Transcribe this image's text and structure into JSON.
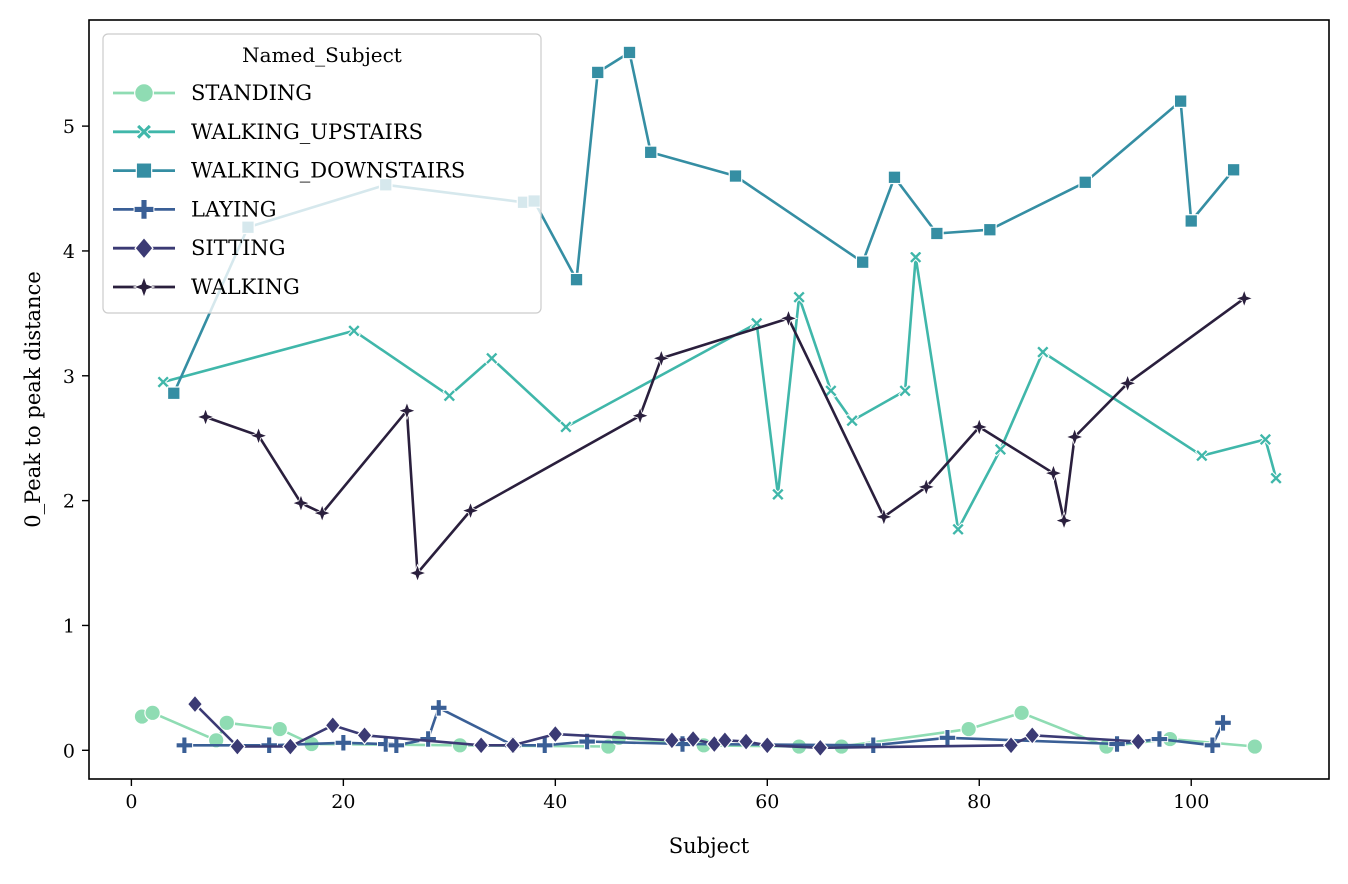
{
  "chart_data": {
    "type": "line",
    "xlabel": "Subject",
    "ylabel": "0_Peak to peak distance",
    "xlim": [
      -4,
      113
    ],
    "ylim": [
      -0.23,
      5.85
    ],
    "xticks": [
      0,
      20,
      40,
      60,
      80,
      100
    ],
    "yticks": [
      0,
      1,
      2,
      3,
      4,
      5
    ],
    "xtick_labels": [
      "0",
      "20",
      "40",
      "60",
      "80",
      "100"
    ],
    "ytick_labels": [
      "0",
      "1",
      "2",
      "3",
      "4",
      "5"
    ],
    "grid": false,
    "legend": {
      "title": "Named_Subject",
      "placement": "upper-left"
    },
    "series": [
      {
        "name": "STANDING",
        "color": "#8fdcb3",
        "marker": "circle",
        "points": [
          [
            1,
            0.27
          ],
          [
            2,
            0.3
          ],
          [
            8,
            0.08
          ],
          [
            9,
            0.22
          ],
          [
            14,
            0.17
          ],
          [
            17,
            0.05
          ],
          [
            31,
            0.04
          ],
          [
            45,
            0.03
          ],
          [
            46,
            0.1
          ],
          [
            54,
            0.04
          ],
          [
            63,
            0.03
          ],
          [
            67,
            0.03
          ],
          [
            79,
            0.17
          ],
          [
            84,
            0.3
          ],
          [
            92,
            0.03
          ],
          [
            98,
            0.09
          ],
          [
            106,
            0.03
          ]
        ]
      },
      {
        "name": "WALKING_UPSTAIRS",
        "color": "#40b7aa",
        "marker": "x",
        "points": [
          [
            3,
            2.95
          ],
          [
            21,
            3.36
          ],
          [
            30,
            2.84
          ],
          [
            34,
            3.14
          ],
          [
            41,
            2.59
          ],
          [
            59,
            3.42
          ],
          [
            61,
            2.05
          ],
          [
            63,
            3.63
          ],
          [
            66,
            2.88
          ],
          [
            68,
            2.64
          ],
          [
            73,
            2.88
          ],
          [
            74,
            3.95
          ],
          [
            78,
            1.77
          ],
          [
            82,
            2.41
          ],
          [
            86,
            3.19
          ],
          [
            101,
            2.36
          ],
          [
            107,
            2.49
          ],
          [
            108,
            2.18
          ]
        ]
      },
      {
        "name": "WALKING_DOWNSTAIRS",
        "color": "#358ea3",
        "marker": "square",
        "points": [
          [
            4,
            2.86
          ],
          [
            11,
            4.19
          ],
          [
            24,
            4.53
          ],
          [
            37,
            4.39
          ],
          [
            38,
            4.4
          ],
          [
            42,
            3.77
          ],
          [
            44,
            5.43
          ],
          [
            47,
            5.59
          ],
          [
            49,
            4.79
          ],
          [
            57,
            4.6
          ],
          [
            69,
            3.91
          ],
          [
            72,
            4.59
          ],
          [
            76,
            4.14
          ],
          [
            81,
            4.17
          ],
          [
            90,
            4.55
          ],
          [
            99,
            5.2
          ],
          [
            100,
            4.24
          ],
          [
            104,
            4.65
          ]
        ]
      },
      {
        "name": "LAYING",
        "color": "#3a5f96",
        "marker": "plus",
        "points": [
          [
            5,
            0.04
          ],
          [
            13,
            0.04
          ],
          [
            20,
            0.06
          ],
          [
            24,
            0.05
          ],
          [
            25,
            0.04
          ],
          [
            28,
            0.09
          ],
          [
            29,
            0.34
          ],
          [
            36,
            0.04
          ],
          [
            39,
            0.04
          ],
          [
            43,
            0.07
          ],
          [
            52,
            0.05
          ],
          [
            70,
            0.04
          ],
          [
            77,
            0.1
          ],
          [
            93,
            0.05
          ],
          [
            97,
            0.09
          ],
          [
            102,
            0.04
          ],
          [
            103,
            0.22
          ]
        ]
      },
      {
        "name": "SITTING",
        "color": "#3b3a74",
        "marker": "diamond",
        "points": [
          [
            6,
            0.37
          ],
          [
            10,
            0.03
          ],
          [
            15,
            0.03
          ],
          [
            19,
            0.2
          ],
          [
            22,
            0.12
          ],
          [
            33,
            0.04
          ],
          [
            36,
            0.04
          ],
          [
            40,
            0.13
          ],
          [
            51,
            0.08
          ],
          [
            53,
            0.09
          ],
          [
            55,
            0.05
          ],
          [
            56,
            0.08
          ],
          [
            58,
            0.07
          ],
          [
            60,
            0.04
          ],
          [
            65,
            0.02
          ],
          [
            83,
            0.04
          ],
          [
            85,
            0.12
          ],
          [
            95,
            0.07
          ]
        ]
      },
      {
        "name": "WALKING",
        "color": "#2a1f3d",
        "marker": "star",
        "points": [
          [
            7,
            2.67
          ],
          [
            12,
            2.52
          ],
          [
            16,
            1.98
          ],
          [
            18,
            1.9
          ],
          [
            26,
            2.72
          ],
          [
            27,
            1.42
          ],
          [
            32,
            1.92
          ],
          [
            48,
            2.68
          ],
          [
            50,
            3.14
          ],
          [
            62,
            3.46
          ],
          [
            71,
            1.87
          ],
          [
            75,
            2.11
          ],
          [
            80,
            2.59
          ],
          [
            87,
            2.22
          ],
          [
            88,
            1.84
          ],
          [
            89,
            2.51
          ],
          [
            94,
            2.94
          ],
          [
            105,
            3.62
          ]
        ]
      }
    ]
  }
}
